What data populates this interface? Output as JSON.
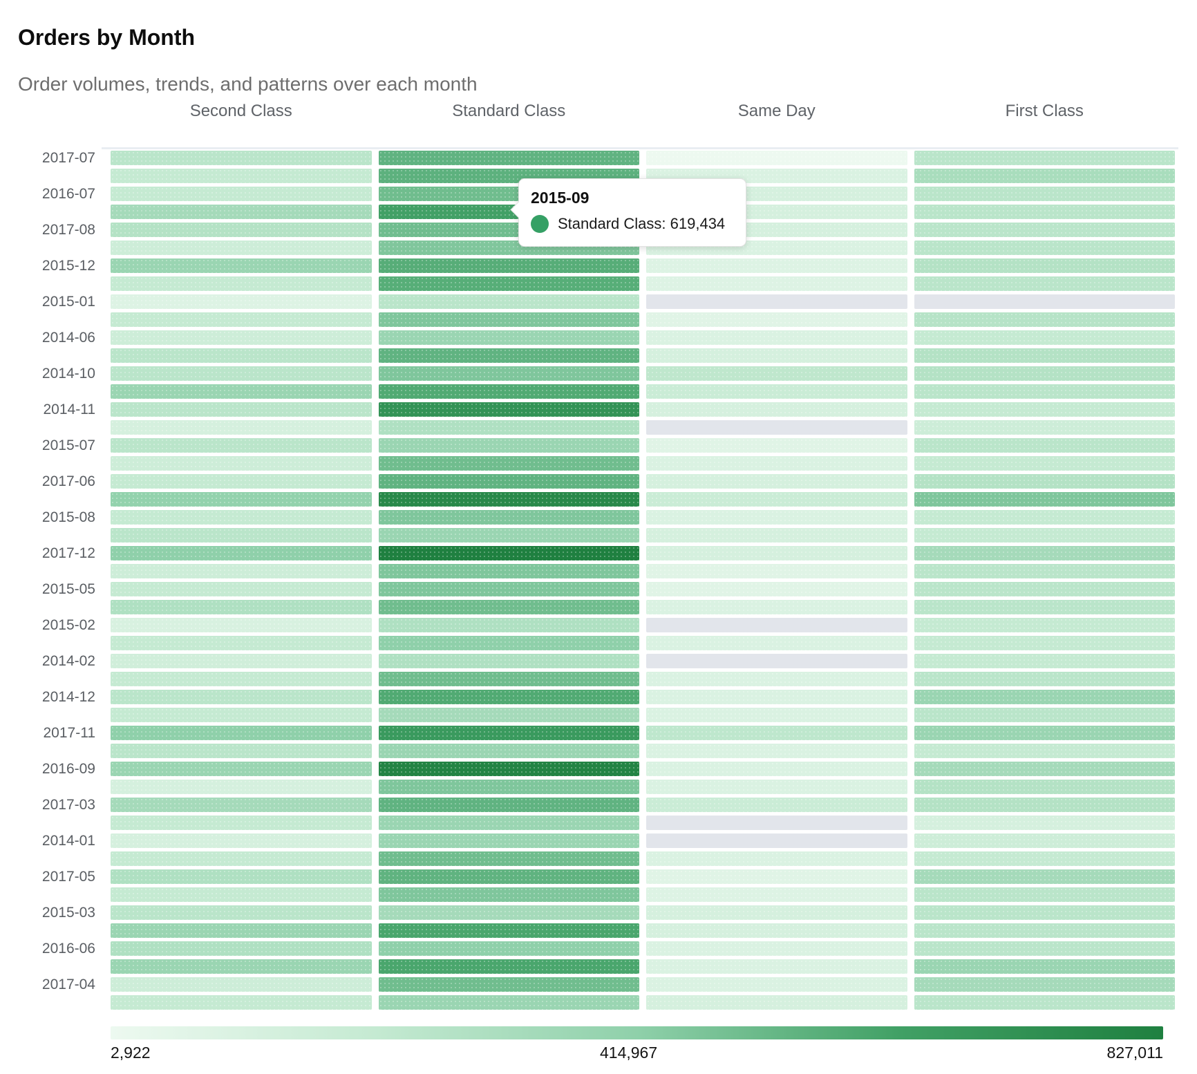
{
  "header": {
    "title": "Orders by Month",
    "subtitle": "Order volumes, trends, and patterns over each month"
  },
  "columns": [
    "Second Class",
    "Standard Class",
    "Same Day",
    "First Class"
  ],
  "tooltip": {
    "title": "2015-09",
    "text": "Standard Class: 619,434",
    "dot_color": "#35a065"
  },
  "legend": {
    "min": "2,922",
    "mid": "414,967",
    "max": "827,011"
  },
  "colors": {
    "scale": [
      "#edf9f0",
      "#c5ead2",
      "#8fd0aa",
      "#41a065",
      "#1f8040"
    ],
    "missing": "#e2e5eb"
  },
  "chart_data": {
    "type": "heatmap",
    "title": "Orders by Month",
    "columns": [
      "Second Class",
      "Standard Class",
      "Same Day",
      "First Class"
    ],
    "value_range": [
      2922,
      827011
    ],
    "legend_ticks": [
      2922,
      414967,
      827011
    ],
    "hovered_cell": {
      "row_index": 3,
      "month": "2015-09",
      "column": "Standard Class",
      "value": 619434
    },
    "rows": [
      {
        "label": "2017-07",
        "values": [
          250312,
          538126,
          2922,
          249803
        ]
      },
      {
        "label": "",
        "values": [
          208110,
          546200,
          101250,
          315640
        ]
      },
      {
        "label": "2016-07",
        "values": [
          207954,
          497820,
          126012,
          250977
        ]
      },
      {
        "label": "",
        "values": [
          332145,
          619434,
          125890,
          249100
        ]
      },
      {
        "label": "2017-08",
        "values": [
          274505,
          497010,
          126788,
          251209
        ]
      },
      {
        "label": "",
        "values": [
          167202,
          455873,
          101500,
          250441
        ]
      },
      {
        "label": "2015-12",
        "values": [
          373214,
          563110,
          85672,
          274390
        ]
      },
      {
        "label": "",
        "values": [
          208677,
          562808,
          85120,
          250076
        ]
      },
      {
        "label": "2015-01",
        "values": [
          85034,
          250120,
          null,
          null
        ]
      },
      {
        "label": "",
        "values": [
          208432,
          456019,
          68712,
          266110
        ]
      },
      {
        "label": "2014-06",
        "values": [
          167689,
          373950,
          101342,
          208221
        ]
      },
      {
        "label": "",
        "values": [
          250870,
          538004,
          126477,
          274655
        ]
      },
      {
        "label": "2014-10",
        "values": [
          249965,
          456702,
          233410,
          274209
        ]
      },
      {
        "label": "",
        "values": [
          373556,
          579340,
          184009,
          250666
        ]
      },
      {
        "label": "2014-11",
        "values": [
          250233,
          703512,
          126103,
          208490
        ]
      },
      {
        "label": "",
        "values": [
          126010,
          291480,
          null,
          167305
        ]
      },
      {
        "label": "2015-07",
        "values": [
          249780,
          373120,
          68240,
          249558
        ]
      },
      {
        "label": "",
        "values": [
          167466,
          497200,
          101890,
          208873
        ]
      },
      {
        "label": "2017-06",
        "values": [
          208345,
          538760,
          126246,
          274101
        ]
      },
      {
        "label": "",
        "values": [
          398123,
          769407,
          184560,
          456320
        ]
      },
      {
        "label": "2015-08",
        "values": [
          208221,
          456500,
          101233,
          208107
        ]
      },
      {
        "label": "",
        "values": [
          250432,
          373689,
          126900,
          208755
        ]
      },
      {
        "label": "2017-12",
        "values": [
          414210,
          827011,
          126352,
          332480
        ]
      },
      {
        "label": "",
        "values": [
          167098,
          456230,
          68543,
          249986
        ]
      },
      {
        "label": "2015-05",
        "values": [
          208560,
          456810,
          68901,
          250322
        ]
      },
      {
        "label": "",
        "values": [
          291004,
          497555,
          101678,
          249674
        ]
      },
      {
        "label": "2015-02",
        "values": [
          110234,
          291120,
          null,
          208010
        ]
      },
      {
        "label": "",
        "values": [
          208812,
          414530,
          101444,
          208300
        ]
      },
      {
        "label": "2014-02",
        "values": [
          151340,
          291767,
          null,
          208654
        ]
      },
      {
        "label": "",
        "values": [
          208098,
          497801,
          101988,
          250755
        ]
      },
      {
        "label": "2014-12",
        "values": [
          250600,
          579912,
          101200,
          373400
        ]
      },
      {
        "label": "",
        "values": [
          208455,
          332890,
          101590,
          249860
        ]
      },
      {
        "label": "2017-11",
        "values": [
          414671,
          662350,
          233890,
          373988
        ]
      },
      {
        "label": "",
        "values": [
          250120,
          373350,
          101760,
          208430
        ]
      },
      {
        "label": "2016-09",
        "values": [
          373890,
          802541,
          101521,
          332100
        ]
      },
      {
        "label": "",
        "values": [
          126345,
          456412,
          101399,
          274788
        ]
      },
      {
        "label": "2017-03",
        "values": [
          332765,
          538214,
          184330,
          274502
        ]
      },
      {
        "label": "",
        "values": [
          208240,
          373608,
          null,
          126223
        ]
      },
      {
        "label": "2014-01",
        "values": [
          126556,
          373217,
          null,
          167800
        ]
      },
      {
        "label": "",
        "values": [
          208380,
          497122,
          101670,
          208995
        ]
      },
      {
        "label": "2017-05",
        "values": [
          291610,
          538911,
          68320,
          332204
        ]
      },
      {
        "label": "",
        "values": [
          208201,
          456633,
          85455,
          250233
        ]
      },
      {
        "label": "2015-03",
        "values": [
          250540,
          332705,
          126641,
          250108
        ]
      },
      {
        "label": "",
        "values": [
          373402,
          596480,
          126723,
          249933
        ]
      },
      {
        "label": "2016-06",
        "values": [
          291870,
          414210,
          101877,
          250466
        ]
      },
      {
        "label": "",
        "values": [
          373015,
          596112,
          101230,
          373651
        ]
      },
      {
        "label": "2017-04",
        "values": [
          167903,
          497233,
          101600,
          332019
        ]
      },
      {
        "label": "",
        "values": [
          208666,
          373500,
          126475,
          249700
        ]
      }
    ]
  }
}
